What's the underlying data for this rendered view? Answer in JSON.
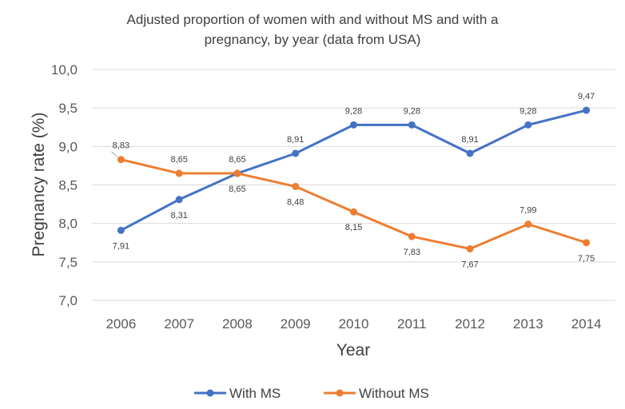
{
  "chart_data": {
    "type": "line",
    "title_lines": [
      "Adjusted proportion of women with and without MS and with a",
      "pregnancy, by year (data from USA)"
    ],
    "xlabel": "Year",
    "ylabel": "Pregnancy rate (%)",
    "categories": [
      "2006",
      "2007",
      "2008",
      "2009",
      "2010",
      "2011",
      "2012",
      "2013",
      "2014"
    ],
    "ylim": [
      7.0,
      10.0
    ],
    "yticks": [
      7.0,
      7.5,
      8.0,
      8.5,
      9.0,
      9.5,
      10.0
    ],
    "ytick_labels": [
      "7,0",
      "7,5",
      "8,0",
      "8,5",
      "9,0",
      "9,5",
      "10,0"
    ],
    "grid": true,
    "legend_position": "bottom",
    "series": [
      {
        "name": "With MS",
        "color": "#4472c4",
        "values": [
          7.91,
          8.31,
          8.65,
          8.91,
          9.28,
          9.28,
          8.91,
          9.28,
          9.47
        ],
        "labels": [
          "7,91",
          "8,31",
          "8,65",
          "8,91",
          "9,28",
          "9,28",
          "8,91",
          "9,28",
          "9,47"
        ],
        "label_positions": [
          "below",
          "below",
          "above",
          "above",
          "above",
          "above",
          "above",
          "above",
          "above"
        ]
      },
      {
        "name": "Without MS",
        "color": "#ed7d31",
        "values": [
          8.83,
          8.65,
          8.65,
          8.48,
          8.15,
          7.83,
          7.67,
          7.99,
          7.75
        ],
        "labels": [
          "8,83",
          "8,65",
          "8,65",
          "8,48",
          "8,15",
          "7,83",
          "7,67",
          "7,99",
          "7,75"
        ],
        "label_positions": [
          "above",
          "above",
          "below",
          "below",
          "below",
          "below",
          "below",
          "above",
          "below"
        ]
      }
    ]
  }
}
